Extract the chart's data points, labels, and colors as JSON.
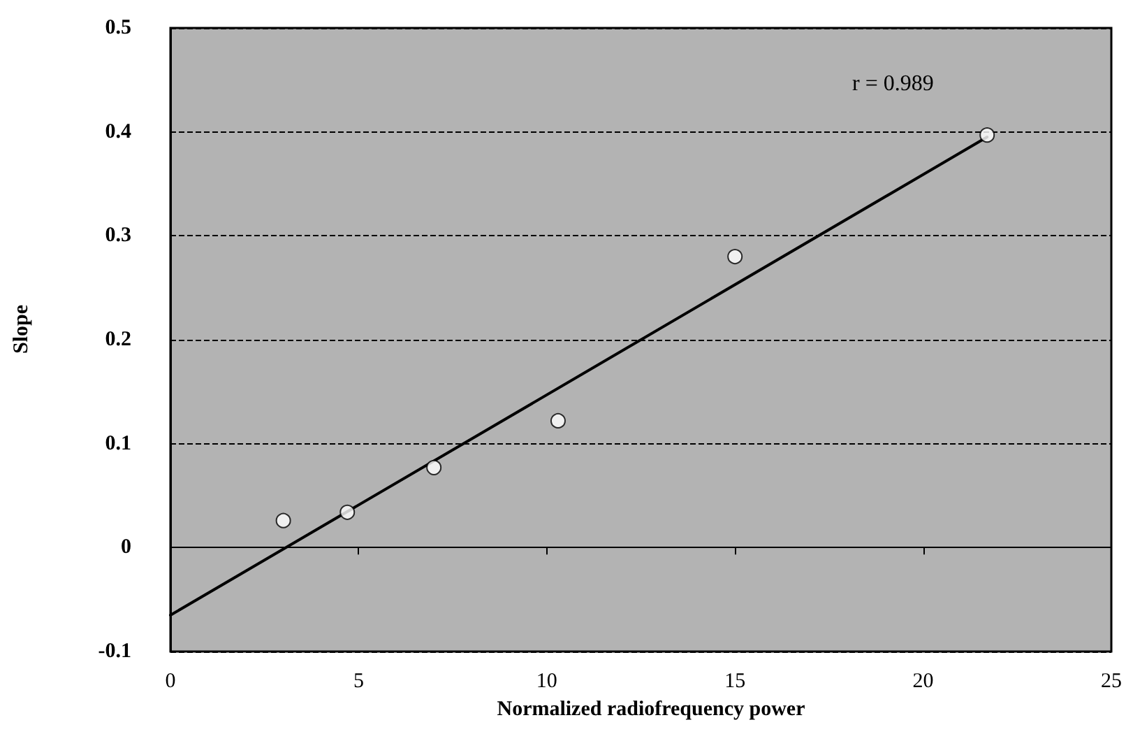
{
  "chart_data": {
    "type": "scatter",
    "xlabel": "Normalized radiofrequency power",
    "ylabel": "Slope",
    "annotations": [
      "r = 0.989"
    ],
    "series": [
      {
        "color": "#ffffff",
        "marker": "circle",
        "x": [
          3.0,
          4.7,
          7.0,
          10.3,
          15.0,
          21.7
        ],
        "values": [
          0.026,
          0.034,
          0.077,
          0.122,
          0.28,
          0.397
        ]
      },
      {
        "type": "line",
        "color": "#000000",
        "marker": "none",
        "line_style": "solid",
        "x": [
          0,
          21.7
        ],
        "values": [
          -0.065,
          0.395
        ]
      }
    ],
    "xlim": [
      0,
      25
    ],
    "xticks": [
      0,
      5,
      10,
      15,
      20,
      25
    ],
    "ylim": [
      -0.1,
      0.5
    ],
    "yticks": [
      -0.1,
      0,
      0.1,
      0.2,
      0.3,
      0.4,
      0.5
    ],
    "grid": "y"
  }
}
